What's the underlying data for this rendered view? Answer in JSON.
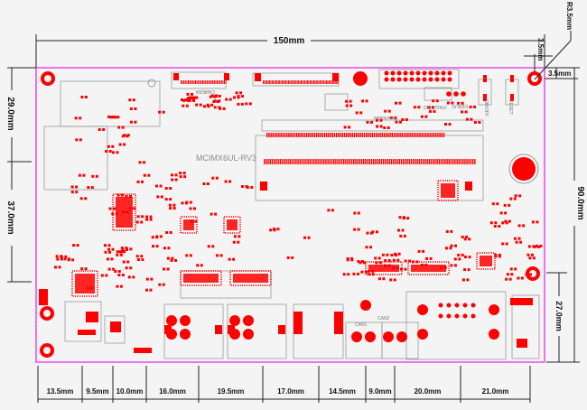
{
  "drawing": {
    "board_name": "MCIMX6UL-RV3",
    "colors": {
      "board_edge": "#e94ae9",
      "copper": "#ff0000",
      "silkscreen": "#777777",
      "dimension": "#222222"
    },
    "dimensions": {
      "width": "150mm",
      "height": "90.0mm",
      "left_upper": "29.0mm",
      "left_lower": "37.0mm",
      "right_lower": "27.0mm",
      "hole_offset_x": "3.5mm",
      "hole_offset_y": "3.5mm",
      "hole_radius": "R3.5mm",
      "bottom": [
        "13.5mm",
        "9.5mm",
        "10.0mm",
        "16.0mm",
        "19.5mm",
        "17.0mm",
        "14.5mm",
        "9.0mm",
        "20.0mm",
        "21.0mm"
      ]
    },
    "silkscreen": {
      "camera": "CAMERA",
      "downloader": "Downloader",
      "jtag": "JTAG/GPIO",
      "debug": "DEBUG",
      "onoff": "ON/OFF",
      "reset": "RESET",
      "can1": "CAN1",
      "can2": "CAN2"
    }
  }
}
